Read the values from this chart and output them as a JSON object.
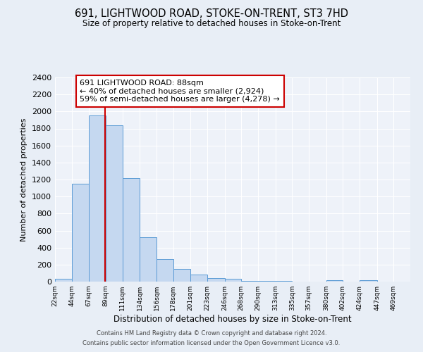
{
  "title": "691, LIGHTWOOD ROAD, STOKE-ON-TRENT, ST3 7HD",
  "subtitle": "Size of property relative to detached houses in Stoke-on-Trent",
  "xlabel": "Distribution of detached houses by size in Stoke-on-Trent",
  "ylabel": "Number of detached properties",
  "bin_labels": [
    "22sqm",
    "44sqm",
    "67sqm",
    "89sqm",
    "111sqm",
    "134sqm",
    "156sqm",
    "178sqm",
    "201sqm",
    "223sqm",
    "246sqm",
    "268sqm",
    "290sqm",
    "313sqm",
    "335sqm",
    "357sqm",
    "380sqm",
    "402sqm",
    "424sqm",
    "447sqm",
    "469sqm"
  ],
  "bin_edges": [
    22,
    44,
    67,
    89,
    111,
    134,
    156,
    178,
    201,
    223,
    246,
    268,
    290,
    313,
    335,
    357,
    380,
    402,
    424,
    447,
    469
  ],
  "bar_heights": [
    30,
    1150,
    1950,
    1840,
    1220,
    520,
    265,
    150,
    80,
    45,
    35,
    10,
    8,
    5,
    3,
    2,
    18,
    2,
    20,
    2,
    2
  ],
  "bar_color": "#c5d8f0",
  "bar_edge_color": "#5b9bd5",
  "vline_x": 88,
  "vline_color": "#cc0000",
  "ylim": [
    0,
    2400
  ],
  "yticks": [
    0,
    200,
    400,
    600,
    800,
    1000,
    1200,
    1400,
    1600,
    1800,
    2000,
    2200,
    2400
  ],
  "annotation_text": "691 LIGHTWOOD ROAD: 88sqm\n← 40% of detached houses are smaller (2,924)\n59% of semi-detached houses are larger (4,278) →",
  "annotation_box_color": "#ffffff",
  "annotation_box_edge": "#cc0000",
  "footer_line1": "Contains HM Land Registry data © Crown copyright and database right 2024.",
  "footer_line2": "Contains public sector information licensed under the Open Government Licence v3.0.",
  "bg_color": "#e8eef6",
  "plot_bg_color": "#eef2f9",
  "grid_color": "#ffffff"
}
